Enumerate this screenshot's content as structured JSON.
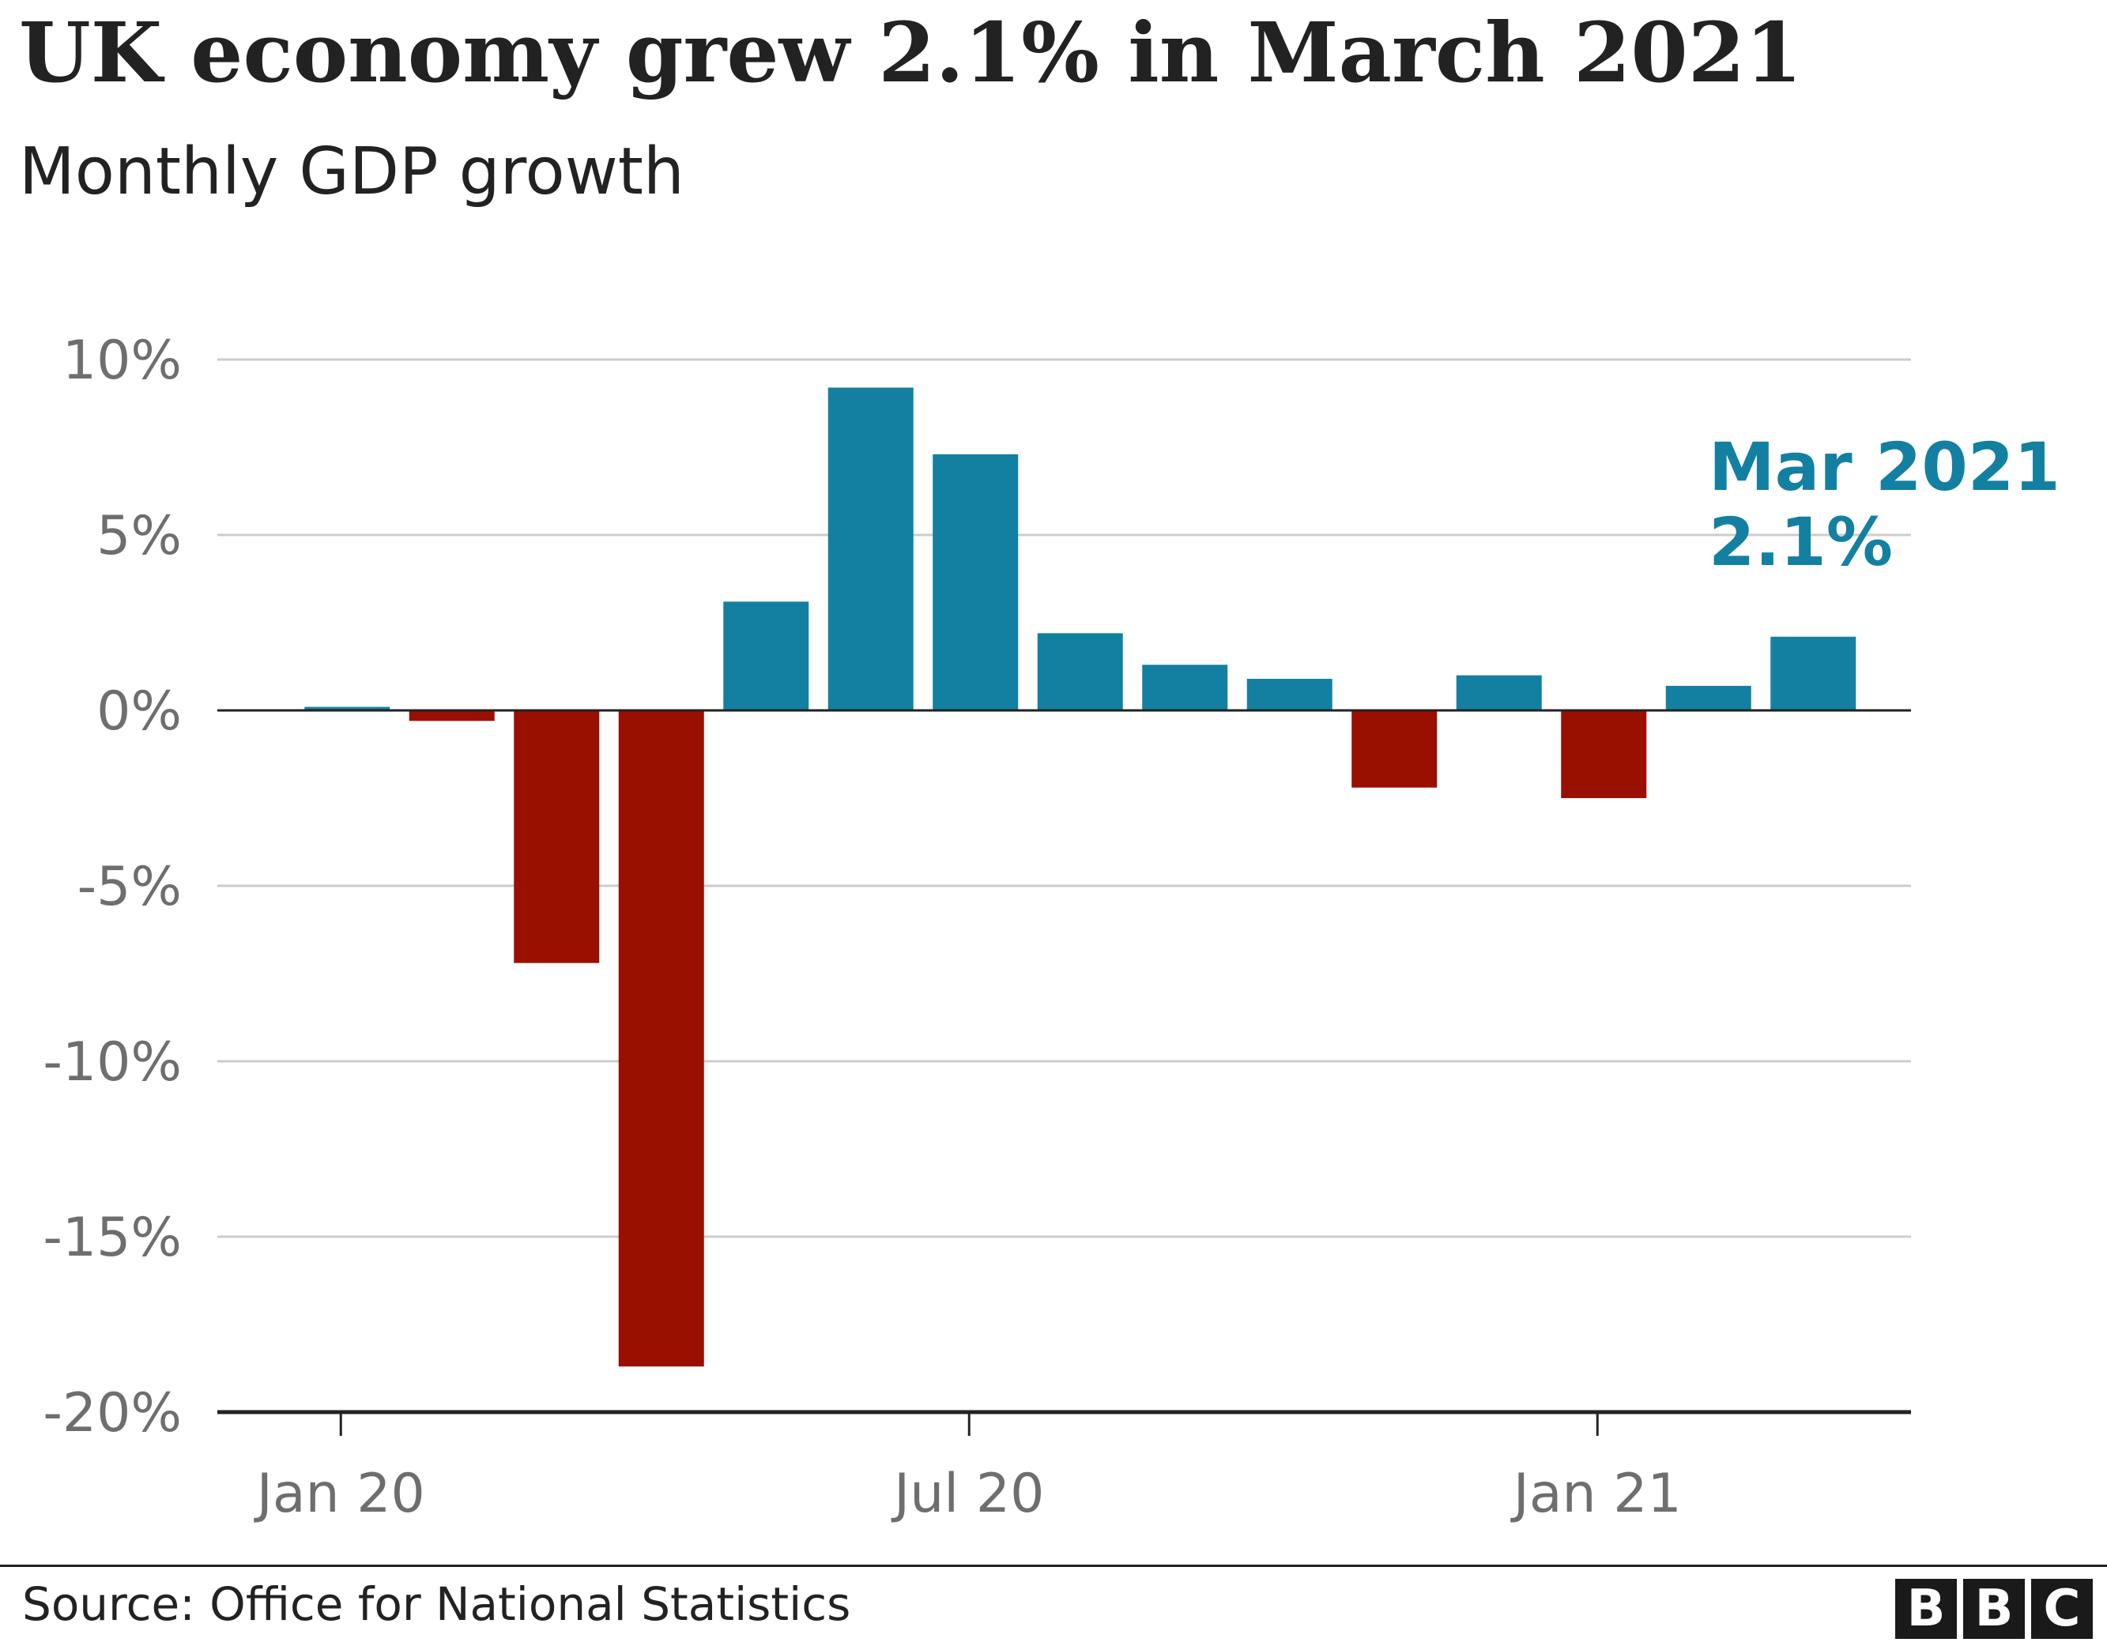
{
  "title": "UK economy grew 2.1% in March 2021",
  "subtitle": "Monthly GDP growth",
  "source": "Source: Office for National Statistics",
  "logo": [
    "B",
    "B",
    "C"
  ],
  "colors": {
    "positive": "#1380a1",
    "negative": "#990f00",
    "grid": "#cccccc",
    "axis": "#222222",
    "tick_text": "#6e6e6e",
    "text": "#222222"
  },
  "chart_data": {
    "type": "bar",
    "x": [
      "2020-01",
      "2020-02",
      "2020-03",
      "2020-04",
      "2020-05",
      "2020-06",
      "2020-07",
      "2020-08",
      "2020-09",
      "2020-10",
      "2020-11",
      "2020-12",
      "2021-01",
      "2021-02",
      "2021-03"
    ],
    "values": [
      0.1,
      -0.3,
      -7.2,
      -18.7,
      3.1,
      9.2,
      7.3,
      2.2,
      1.3,
      0.9,
      -2.2,
      1.0,
      -2.5,
      0.7,
      2.1
    ],
    "ylim": [
      -20,
      10
    ],
    "yticks": [
      10,
      5,
      0,
      -5,
      -10,
      -15,
      -20
    ],
    "ytick_labels": [
      "10%",
      "5%",
      "0%",
      "-5%",
      "-10%",
      "-15%",
      "-20%"
    ],
    "xtick_labels": [
      {
        "label": "Jan 20",
        "at": "2020-01"
      },
      {
        "label": "Jul 20",
        "at": "2020-07"
      },
      {
        "label": "Jan 21",
        "at": "2021-01"
      }
    ],
    "grid": true,
    "annotation": {
      "at": "2021-03",
      "lines": [
        "Mar 2021",
        "2.1%"
      ]
    }
  }
}
